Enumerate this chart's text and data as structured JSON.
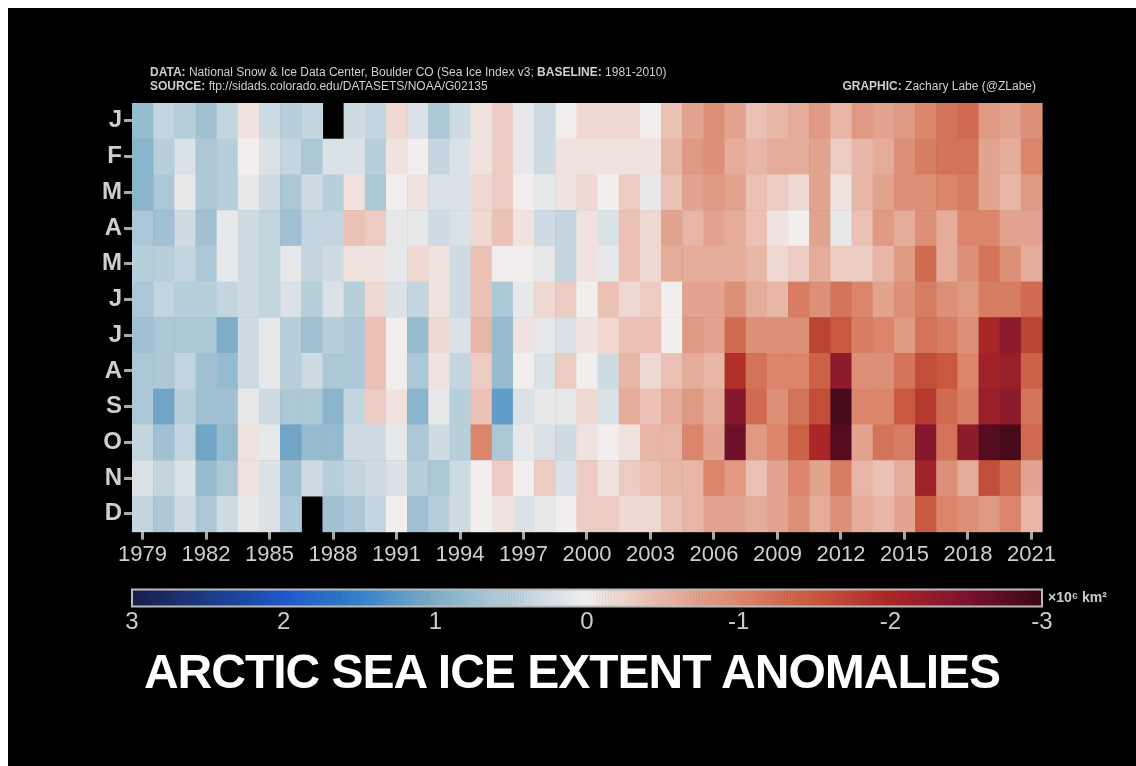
{
  "chart_data": {
    "type": "heatmap",
    "title": "ARCTIC SEA ICE EXTENT ANOMALIES",
    "annotations": [
      "DATA: National Snow & Ice Data Center, Boulder CO (Sea Ice Index v3; BASELINE: 1981-2010)",
      "SOURCE: ftp://sidads.colorado.edu/DATASETS/NOAA/G02135",
      "GRAPHIC: Zachary Labe (@ZLabe)"
    ],
    "categories": [
      "1979",
      null,
      null,
      "1982",
      null,
      null,
      "1985",
      null,
      null,
      "1988",
      null,
      null,
      "1991",
      null,
      null,
      "1994",
      null,
      null,
      "1997",
      null,
      null,
      "2000",
      null,
      null,
      "2003",
      null,
      null,
      "2006",
      null,
      null,
      "2009",
      null,
      null,
      "2012",
      null,
      null,
      "2015",
      null,
      null,
      "2018",
      null,
      null,
      "2021"
    ],
    "y_categories": [
      "J",
      "F",
      "M",
      "A",
      "M",
      "J",
      "J",
      "A",
      "S",
      "O",
      "N",
      "D"
    ],
    "cells": [
      [
        0.8,
        0.4,
        0.5,
        0.7,
        0.4,
        -0.1,
        0.3,
        0.5,
        0.4,
        null,
        0.3,
        0.4,
        -0.2,
        0.2,
        0.6,
        0.3,
        -0.1,
        -0.3,
        0.1,
        0.3,
        0,
        -0.2,
        -0.2,
        -0.2,
        0,
        -0.4,
        -0.7,
        -0.9,
        -0.7,
        -0.4,
        -0.5,
        -0.6,
        -0.8,
        -0.5,
        -0.8,
        -0.7,
        -0.8,
        -1.0,
        -1.2,
        -1.3,
        -0.8,
        -0.7,
        -0.9
      ],
      [
        0.9,
        0.5,
        0.2,
        0.6,
        0.5,
        0,
        0.2,
        0.4,
        0.6,
        0.2,
        0.2,
        0.5,
        -0.1,
        0,
        0.4,
        0.2,
        -0.1,
        -0.3,
        0.1,
        0.3,
        -0.1,
        -0.1,
        -0.1,
        -0.1,
        -0.1,
        -0.5,
        -0.8,
        -0.9,
        -0.6,
        -0.5,
        -0.6,
        -0.6,
        -0.7,
        -0.3,
        -0.5,
        -0.6,
        -0.9,
        -1.1,
        -1.2,
        -1.2,
        -0.7,
        -0.6,
        -1.0
      ],
      [
        0.9,
        0.6,
        0.1,
        0.6,
        0.5,
        0.1,
        0.3,
        0.6,
        0.3,
        0.5,
        -0.1,
        0.6,
        0,
        -0.1,
        0.2,
        0.2,
        -0.2,
        -0.3,
        0,
        0.1,
        -0.1,
        -0.2,
        0,
        -0.3,
        0.1,
        -0.4,
        -0.7,
        -0.8,
        -0.7,
        -0.4,
        -0.3,
        -0.2,
        -0.7,
        -0.1,
        -0.5,
        -0.7,
        -0.9,
        -0.9,
        -1.0,
        -1.1,
        -0.7,
        -0.5,
        -0.8
      ],
      [
        0.6,
        0.7,
        0.3,
        0.7,
        0.1,
        0.3,
        0.4,
        0.7,
        0.4,
        0.4,
        -0.4,
        -0.3,
        0.1,
        0.1,
        0.3,
        0.2,
        -0.2,
        -0.4,
        -0.1,
        0.3,
        0.4,
        -0.1,
        0.2,
        -0.4,
        -0.2,
        -0.7,
        -0.5,
        -0.7,
        -0.6,
        -0.4,
        -0.1,
        0,
        -0.7,
        0.1,
        -0.4,
        -0.8,
        -0.6,
        -0.9,
        -0.6,
        -1.0,
        -1.0,
        -0.7,
        -0.7
      ],
      [
        0.5,
        0.5,
        0.4,
        0.6,
        0.1,
        0.3,
        0.4,
        0.1,
        0.4,
        0.3,
        -0.1,
        -0.1,
        0.1,
        -0.2,
        -0.1,
        0.3,
        -0.4,
        0,
        0,
        0.1,
        0.4,
        -0.1,
        0.1,
        -0.4,
        -0.2,
        -0.6,
        -0.6,
        -0.6,
        -0.6,
        -0.5,
        -0.2,
        -0.3,
        -0.6,
        -0.3,
        -0.3,
        -0.5,
        -0.8,
        -1.3,
        -0.6,
        -0.9,
        -1.2,
        -0.9,
        -0.6
      ],
      [
        0.6,
        0.4,
        0.5,
        0.5,
        0.4,
        0.3,
        0.4,
        0.2,
        0.5,
        0.2,
        0.5,
        -0.2,
        0.2,
        0.4,
        -0.1,
        0.3,
        -0.4,
        0.6,
        0.1,
        -0.2,
        -0.3,
        0,
        -0.4,
        -0.2,
        -0.3,
        0,
        -0.7,
        -0.7,
        -0.9,
        -0.6,
        -0.5,
        -1.1,
        -0.9,
        -1.2,
        -1.0,
        -0.7,
        -0.9,
        -1.1,
        -0.9,
        -0.8,
        -1.1,
        -1.1,
        -1.3
      ],
      [
        0.7,
        0.6,
        0.6,
        0.6,
        1.0,
        0.3,
        0.1,
        0.5,
        0.7,
        0.5,
        0.6,
        -0.4,
        0,
        0.8,
        -0.2,
        0.2,
        -0.5,
        0.8,
        -0.1,
        0.1,
        0.2,
        -0.1,
        -0.2,
        -0.4,
        -0.4,
        0,
        -0.8,
        -0.7,
        -1.3,
        -0.9,
        -0.9,
        -0.9,
        -1.7,
        -1.5,
        -1.1,
        -1.0,
        -0.8,
        -1.2,
        -1.1,
        -0.9,
        -2.0,
        -2.3,
        -1.7
      ],
      [
        0.6,
        0.6,
        0.4,
        0.7,
        0.8,
        0.3,
        0.1,
        0.5,
        0.3,
        0.6,
        0.6,
        -0.4,
        0,
        0.6,
        -0.1,
        0.4,
        -0.3,
        0.8,
        0,
        0.2,
        -0.3,
        0,
        0.3,
        -0.5,
        -0.2,
        -0.4,
        -0.6,
        -0.5,
        -1.9,
        -1.2,
        -1.0,
        -1.0,
        -1.4,
        -2.3,
        -0.9,
        -0.9,
        -1.2,
        -1.6,
        -1.5,
        -1.0,
        -2.1,
        -2.2,
        -1.4
      ],
      [
        0.6,
        1.1,
        0.5,
        0.7,
        0.7,
        0.1,
        0.3,
        0.6,
        0.6,
        0.9,
        0.4,
        -0.3,
        -0.1,
        0.9,
        0.1,
        0.5,
        -0.4,
        1.2,
        0.2,
        0.1,
        0.1,
        -0.2,
        0.2,
        -0.6,
        -0.4,
        -0.6,
        -0.8,
        -0.6,
        -2.4,
        -1.3,
        -0.9,
        -1.2,
        -1.6,
        -2.9,
        -1.0,
        -1.0,
        -1.5,
        -1.8,
        -1.3,
        -1.1,
        -2.2,
        -2.3,
        -1.2
      ],
      [
        0.4,
        0.7,
        0.4,
        1.1,
        0.8,
        -0.1,
        0.1,
        1.1,
        0.8,
        0.8,
        0.3,
        0.3,
        0.1,
        0.6,
        0.3,
        0.5,
        -1.0,
        0.6,
        0.1,
        0.2,
        0.3,
        -0.1,
        0,
        -0.1,
        -0.5,
        -0.5,
        -1.0,
        -0.7,
        -2.6,
        -0.8,
        -1.0,
        -1.4,
        -2.0,
        -2.8,
        -0.7,
        -1.2,
        -1.1,
        -2.4,
        -1.2,
        -2.3,
        -2.8,
        -2.9,
        -1.3
      ],
      [
        0.2,
        0.4,
        0.2,
        0.8,
        0.6,
        -0.1,
        0.2,
        0.7,
        0.3,
        0.5,
        0.4,
        0.3,
        0.2,
        0.5,
        0.6,
        0.3,
        0,
        -0.3,
        0,
        -0.3,
        0.2,
        -0.3,
        -0.1,
        -0.3,
        -0.4,
        -0.5,
        -0.5,
        -1.0,
        -0.8,
        -0.4,
        -0.7,
        -1.0,
        -0.7,
        -1.1,
        -0.5,
        -0.4,
        -0.6,
        -2.1,
        -0.9,
        -0.6,
        -1.6,
        -1.3,
        -0.7
      ],
      [
        0.4,
        0.6,
        0.3,
        0.6,
        0.3,
        0.1,
        0.2,
        0.6,
        null,
        0.7,
        0.6,
        0.4,
        0,
        0.7,
        0.5,
        0.3,
        0,
        -0.1,
        0.2,
        0.1,
        0,
        -0.3,
        -0.3,
        -0.2,
        -0.2,
        -0.4,
        -0.5,
        -0.7,
        -0.7,
        -0.6,
        -0.7,
        -0.9,
        -0.6,
        -0.9,
        -0.6,
        -0.5,
        -0.7,
        -1.5,
        -1.0,
        -0.9,
        -0.8,
        -1.0,
        -0.5
      ]
    ],
    "clim": [
      3,
      -3
    ],
    "cticks": [
      3,
      2,
      1,
      0,
      -1,
      -2,
      -3
    ],
    "clabel": "×10⁶ km²"
  }
}
